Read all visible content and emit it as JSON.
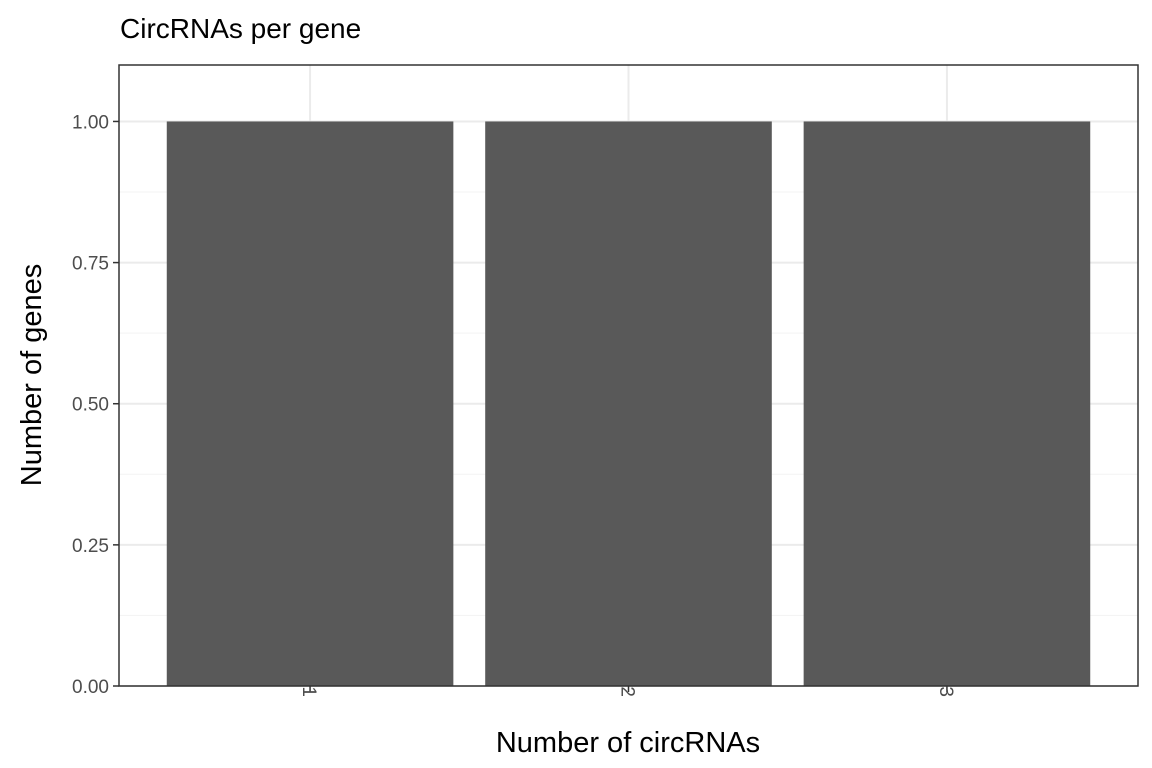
{
  "chart_data": {
    "type": "bar",
    "title": "CircRNAs per gene",
    "xlabel": "Number of circRNAs",
    "ylabel": "Number of genes",
    "categories": [
      "1",
      "2",
      "3"
    ],
    "values": [
      1,
      1,
      1
    ],
    "ylim": [
      0,
      1.1
    ],
    "yticks": [
      "0.00",
      "0.25",
      "0.50",
      "0.75",
      "1.00"
    ],
    "x_tick_rotation": "vertical",
    "grid": true,
    "legend": "none",
    "colors": {
      "bar": "#595959",
      "panel_border": "#333333",
      "grid_major": "#ebebeb",
      "grid_minor": "#f3f3f3",
      "tick_text": "#4d4d4d"
    }
  }
}
